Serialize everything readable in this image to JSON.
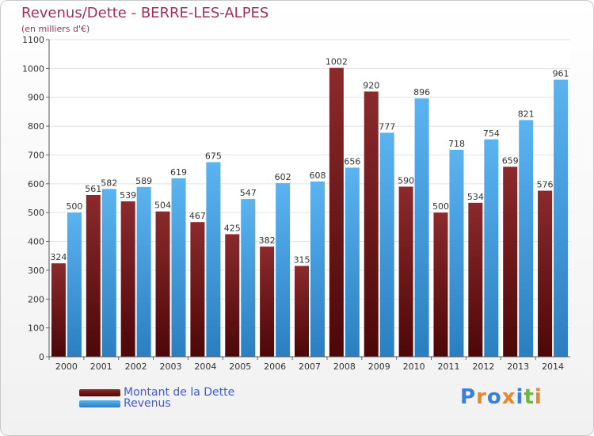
{
  "chart_data": {
    "type": "bar",
    "title": "Revenus/Dette - BERRE-LES-ALPES",
    "subtitle": "(en milliers d'€)",
    "categories": [
      "2000",
      "2001",
      "2002",
      "2003",
      "2004",
      "2005",
      "2006",
      "2007",
      "2008",
      "2009",
      "2010",
      "2011",
      "2012",
      "2013",
      "2014"
    ],
    "series": [
      {
        "name": "Montant de la Dette",
        "color": "#7a1a1d",
        "values": [
          324,
          561,
          539,
          504,
          467,
          425,
          382,
          315,
          1002,
          920,
          590,
          500,
          534,
          659,
          576
        ]
      },
      {
        "name": "Revenus",
        "color": "#4aa3e3",
        "values": [
          500,
          582,
          589,
          619,
          675,
          547,
          602,
          608,
          656,
          777,
          896,
          718,
          754,
          821,
          961
        ]
      }
    ],
    "ylim": [
      0,
      1100
    ],
    "yticks": [
      0,
      100,
      200,
      300,
      400,
      500,
      600,
      700,
      800,
      900,
      1000,
      1100
    ],
    "grid": true,
    "legend": "bottom-left"
  },
  "logo": {
    "text": "Proxiti",
    "colors": [
      "#3a7fd5",
      "#e8862a",
      "#3a7fd5",
      "#e8862a",
      "#3a7fd5",
      "#6bb644",
      "#e8862a"
    ]
  }
}
